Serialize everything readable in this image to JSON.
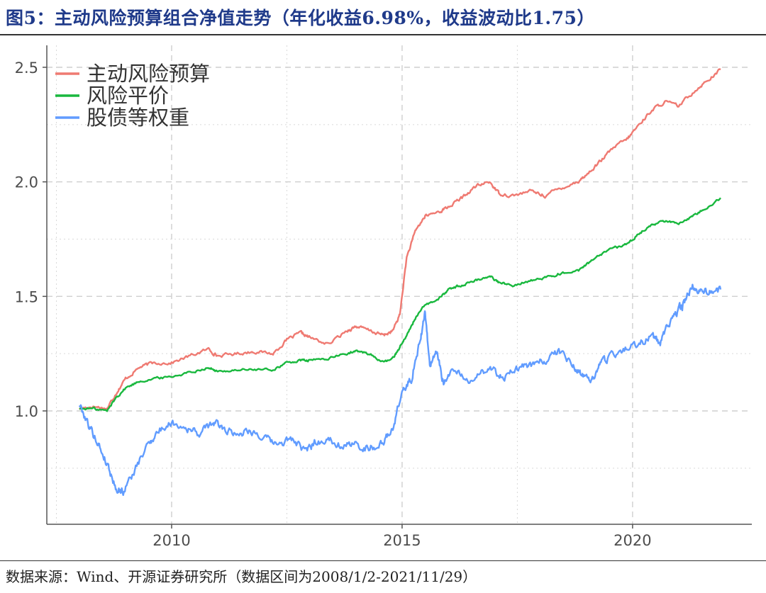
{
  "figure": {
    "title": "图5：主动风险预算组合净值走势（年化收益6.98%，收益波动比1.75）",
    "source": "数据来源：Wind、开源证券研究所（数据区间为2008/1/2-2021/11/29）"
  },
  "chart_data": {
    "type": "line",
    "title": "",
    "xlabel": "",
    "ylabel": "",
    "xlim": [
      2008.0,
      2021.91
    ],
    "ylim": [
      0.6,
      2.55
    ],
    "x_ticks": [
      2010,
      2015,
      2020
    ],
    "y_ticks": [
      1.0,
      1.5,
      2.0,
      2.5
    ],
    "y_tick_labels": [
      "1.0",
      "1.5",
      "2.0",
      "2.5"
    ],
    "grid": true,
    "legend_position": "top-left",
    "series": [
      {
        "name": "主动风险预算",
        "color": "#ef7a72",
        "x": [
          2008.0,
          2008.3,
          2008.6,
          2008.8,
          2009.0,
          2009.3,
          2009.6,
          2010.0,
          2010.4,
          2010.8,
          2011.0,
          2011.4,
          2011.8,
          2012.2,
          2012.5,
          2012.8,
          2013.0,
          2013.4,
          2013.8,
          2014.0,
          2014.3,
          2014.6,
          2014.8,
          2014.95,
          2015.1,
          2015.3,
          2015.5,
          2015.8,
          2016.0,
          2016.3,
          2016.6,
          2016.9,
          2017.1,
          2017.4,
          2017.8,
          2018.1,
          2018.4,
          2018.8,
          2019.0,
          2019.3,
          2019.6,
          2019.9,
          2020.1,
          2020.4,
          2020.7,
          2021.0,
          2021.3,
          2021.6,
          2021.91
        ],
        "y": [
          1.01,
          1.02,
          1.01,
          1.08,
          1.14,
          1.19,
          1.21,
          1.21,
          1.24,
          1.27,
          1.24,
          1.25,
          1.26,
          1.25,
          1.31,
          1.34,
          1.32,
          1.29,
          1.35,
          1.37,
          1.35,
          1.33,
          1.35,
          1.42,
          1.67,
          1.79,
          1.85,
          1.87,
          1.89,
          1.93,
          1.98,
          2.0,
          1.95,
          1.94,
          1.96,
          1.94,
          1.97,
          2.0,
          2.03,
          2.09,
          2.15,
          2.19,
          2.24,
          2.31,
          2.35,
          2.33,
          2.39,
          2.44,
          2.49
        ]
      },
      {
        "name": "风险平价",
        "color": "#19b83e",
        "x": [
          2008.0,
          2008.3,
          2008.6,
          2008.8,
          2009.0,
          2009.3,
          2009.6,
          2010.0,
          2010.4,
          2010.8,
          2011.0,
          2011.4,
          2011.8,
          2012.2,
          2012.5,
          2012.8,
          2013.0,
          2013.4,
          2013.8,
          2014.0,
          2014.3,
          2014.6,
          2014.8,
          2014.95,
          2015.1,
          2015.3,
          2015.5,
          2015.8,
          2016.0,
          2016.3,
          2016.6,
          2016.9,
          2017.1,
          2017.4,
          2017.8,
          2018.1,
          2018.4,
          2018.8,
          2019.0,
          2019.3,
          2019.6,
          2019.9,
          2020.1,
          2020.4,
          2020.7,
          2021.0,
          2021.3,
          2021.6,
          2021.91
        ],
        "y": [
          1.01,
          1.01,
          1.0,
          1.06,
          1.1,
          1.13,
          1.14,
          1.15,
          1.17,
          1.19,
          1.17,
          1.18,
          1.18,
          1.18,
          1.21,
          1.22,
          1.22,
          1.23,
          1.25,
          1.26,
          1.25,
          1.21,
          1.23,
          1.28,
          1.33,
          1.41,
          1.46,
          1.49,
          1.53,
          1.55,
          1.57,
          1.59,
          1.56,
          1.55,
          1.57,
          1.58,
          1.6,
          1.61,
          1.64,
          1.68,
          1.71,
          1.73,
          1.77,
          1.81,
          1.83,
          1.82,
          1.85,
          1.89,
          1.93
        ]
      },
      {
        "name": "股债等权重",
        "color": "#619cff",
        "x": [
          2008.0,
          2008.2,
          2008.4,
          2008.6,
          2008.8,
          2008.95,
          2009.2,
          2009.5,
          2009.7,
          2010.0,
          2010.3,
          2010.6,
          2010.9,
          2011.1,
          2011.4,
          2011.7,
          2012.0,
          2012.3,
          2012.6,
          2012.9,
          2013.1,
          2013.4,
          2013.7,
          2014.0,
          2014.3,
          2014.6,
          2014.8,
          2015.0,
          2015.2,
          2015.4,
          2015.5,
          2015.6,
          2015.75,
          2015.9,
          2016.1,
          2016.4,
          2016.7,
          2016.95,
          2017.2,
          2017.5,
          2017.8,
          2018.1,
          2018.4,
          2018.7,
          2018.9,
          2019.1,
          2019.3,
          2019.5,
          2019.8,
          2020.1,
          2020.4,
          2020.6,
          2020.8,
          2021.0,
          2021.1,
          2021.3,
          2021.5,
          2021.7,
          2021.91
        ],
        "y": [
          1.03,
          0.94,
          0.86,
          0.77,
          0.66,
          0.65,
          0.74,
          0.86,
          0.91,
          0.95,
          0.93,
          0.9,
          0.95,
          0.93,
          0.9,
          0.92,
          0.88,
          0.85,
          0.88,
          0.82,
          0.86,
          0.88,
          0.85,
          0.85,
          0.84,
          0.86,
          0.93,
          1.08,
          1.14,
          1.32,
          1.43,
          1.2,
          1.25,
          1.12,
          1.18,
          1.13,
          1.17,
          1.18,
          1.15,
          1.18,
          1.2,
          1.22,
          1.26,
          1.2,
          1.16,
          1.13,
          1.2,
          1.24,
          1.27,
          1.29,
          1.32,
          1.3,
          1.38,
          1.44,
          1.46,
          1.55,
          1.52,
          1.53,
          1.53
        ]
      }
    ]
  }
}
